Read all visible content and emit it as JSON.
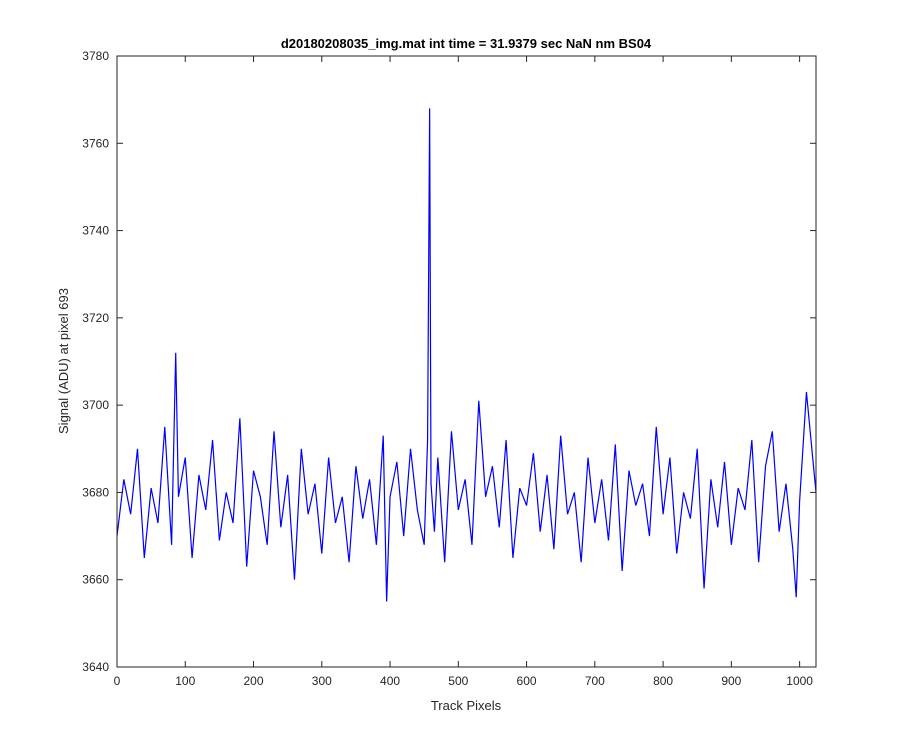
{
  "chart_data": {
    "type": "line",
    "title": "d20180208035_img.mat int time = 31.9379 sec  NaN nm BS04",
    "xlabel": "Track Pixels",
    "ylabel": "Signal (ADU) at pixel 693",
    "xlim": [
      0,
      1024
    ],
    "ylim": [
      3640,
      3780
    ],
    "xticks": [
      0,
      100,
      200,
      300,
      400,
      500,
      600,
      700,
      800,
      900,
      1000
    ],
    "yticks": [
      3640,
      3660,
      3680,
      3700,
      3720,
      3740,
      3760,
      3780
    ],
    "grid": false,
    "legend": "none",
    "line_color": "#0000ff",
    "series": [
      {
        "x": [
          0,
          10,
          20,
          30,
          40,
          50,
          60,
          70,
          80,
          86,
          90,
          100,
          110,
          120,
          130,
          140,
          150,
          160,
          170,
          180,
          190,
          200,
          210,
          220,
          230,
          240,
          250,
          260,
          270,
          280,
          290,
          300,
          310,
          320,
          330,
          340,
          350,
          360,
          370,
          380,
          390,
          395,
          400,
          410,
          420,
          430,
          440,
          450,
          455,
          458,
          460,
          465,
          470,
          480,
          490,
          500,
          510,
          520,
          530,
          540,
          550,
          560,
          570,
          580,
          590,
          600,
          610,
          620,
          630,
          640,
          650,
          660,
          670,
          680,
          690,
          700,
          710,
          720,
          730,
          740,
          750,
          760,
          770,
          780,
          790,
          800,
          810,
          820,
          830,
          840,
          850,
          860,
          870,
          880,
          890,
          900,
          910,
          920,
          930,
          940,
          950,
          960,
          970,
          980,
          990,
          995,
          1000,
          1010,
          1024
        ],
        "values": [
          3670,
          3683,
          3675,
          3690,
          3665,
          3681,
          3673,
          3695,
          3668,
          3712,
          3679,
          3688,
          3665,
          3684,
          3676,
          3692,
          3669,
          3680,
          3673,
          3697,
          3663,
          3685,
          3679,
          3668,
          3694,
          3672,
          3684,
          3660,
          3690,
          3675,
          3682,
          3666,
          3688,
          3673,
          3679,
          3664,
          3686,
          3674,
          3683,
          3668,
          3693,
          3655,
          3679,
          3687,
          3670,
          3690,
          3676,
          3668,
          3692,
          3768,
          3682,
          3671,
          3688,
          3664,
          3694,
          3676,
          3683,
          3668,
          3701,
          3679,
          3686,
          3672,
          3692,
          3665,
          3681,
          3677,
          3689,
          3671,
          3684,
          3667,
          3693,
          3675,
          3680,
          3664,
          3688,
          3673,
          3683,
          3669,
          3691,
          3662,
          3685,
          3677,
          3682,
          3670,
          3695,
          3675,
          3688,
          3666,
          3680,
          3674,
          3690,
          3658,
          3683,
          3672,
          3687,
          3668,
          3681,
          3676,
          3692,
          3664,
          3686,
          3694,
          3671,
          3682,
          3667,
          3656,
          3678,
          3703,
          3680
        ]
      }
    ]
  }
}
